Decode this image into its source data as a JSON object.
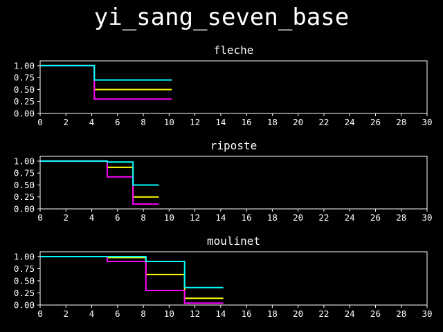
{
  "chart_data": {
    "type": "line",
    "step": "post",
    "suptitle": "yi_sang_seven_base",
    "background": "#000000",
    "axis_color": "#ffffff",
    "series_colors": [
      "#ffff00",
      "#ff00ff",
      "#00ffff"
    ],
    "panels": [
      {
        "title": "fleche",
        "xlim": [
          0,
          30
        ],
        "ylim": [
          0,
          1.1
        ],
        "xticks": [
          0,
          2,
          4,
          6,
          8,
          10,
          12,
          14,
          16,
          18,
          20,
          22,
          24,
          26,
          28,
          30
        ],
        "yticks": [
          0.0,
          0.25,
          0.5,
          0.75,
          1.0
        ],
        "series": [
          {
            "color": "#ffff00",
            "x": [
              0,
              4.2,
              10.2
            ],
            "y": [
              1.0,
              0.5,
              0.5
            ]
          },
          {
            "color": "#ff00ff",
            "x": [
              0,
              4.2,
              10.2
            ],
            "y": [
              1.0,
              0.3,
              0.3
            ]
          },
          {
            "color": "#00ffff",
            "x": [
              0,
              4.2,
              10.2
            ],
            "y": [
              1.0,
              0.7,
              0.7
            ]
          }
        ]
      },
      {
        "title": "riposte",
        "xlim": [
          0,
          30
        ],
        "ylim": [
          0,
          1.1
        ],
        "xticks": [
          0,
          2,
          4,
          6,
          8,
          10,
          12,
          14,
          16,
          18,
          20,
          22,
          24,
          26,
          28,
          30
        ],
        "yticks": [
          0.0,
          0.25,
          0.5,
          0.75,
          1.0
        ],
        "series": [
          {
            "color": "#ffff00",
            "x": [
              0,
              5.2,
              7.2,
              9.2
            ],
            "y": [
              1.0,
              0.87,
              0.25,
              0.25
            ]
          },
          {
            "color": "#ff00ff",
            "x": [
              0,
              5.2,
              7.2,
              9.2
            ],
            "y": [
              1.0,
              0.67,
              0.1,
              0.1
            ]
          },
          {
            "color": "#00ffff",
            "x": [
              0,
              5.2,
              7.2,
              9.2
            ],
            "y": [
              1.0,
              0.98,
              0.5,
              0.5
            ]
          }
        ]
      },
      {
        "title": "moulinet",
        "xlim": [
          0,
          30
        ],
        "ylim": [
          0,
          1.1
        ],
        "xticks": [
          0,
          2,
          4,
          6,
          8,
          10,
          12,
          14,
          16,
          18,
          20,
          22,
          24,
          26,
          28,
          30
        ],
        "yticks": [
          0.0,
          0.25,
          0.5,
          0.75,
          1.0
        ],
        "series": [
          {
            "color": "#ffff00",
            "x": [
              0,
              5.2,
              8.2,
              11.2,
              14.2
            ],
            "y": [
              1.0,
              0.98,
              0.63,
              0.14,
              0.14
            ]
          },
          {
            "color": "#ff00ff",
            "x": [
              0,
              5.2,
              8.2,
              11.2,
              14.2
            ],
            "y": [
              1.0,
              0.9,
              0.3,
              0.04,
              0.04
            ]
          },
          {
            "color": "#00ffff",
            "x": [
              0,
              5.2,
              8.2,
              11.2,
              14.2
            ],
            "y": [
              1.0,
              1.0,
              0.9,
              0.36,
              0.36
            ]
          }
        ]
      }
    ]
  }
}
